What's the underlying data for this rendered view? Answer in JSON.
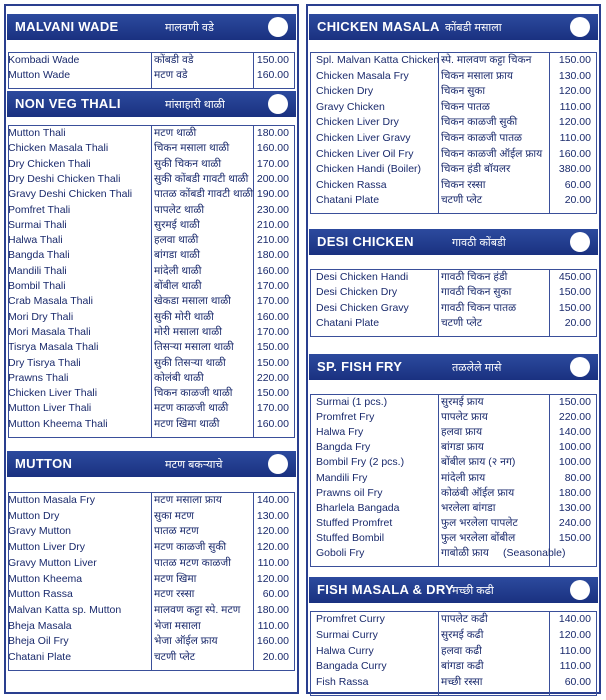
{
  "sections": [
    {
      "title": "MALVANI WADE",
      "title_mr": "मालवणी वडे",
      "items": [
        {
          "name": "Kombadi Wade",
          "name_mr": "कोंबडी वडे",
          "price": "150.00"
        },
        {
          "name": "Mutton Wade",
          "name_mr": "मटण वडे",
          "price": "160.00"
        }
      ]
    },
    {
      "title": "NON VEG THALI",
      "title_mr": "मांसाहारी थाळी",
      "items": [
        {
          "name": "Mutton Thali",
          "name_mr": "मटण थाळी",
          "price": "180.00"
        },
        {
          "name": "Chicken Masala Thali",
          "name_mr": "चिकन मसाला थाळी",
          "price": "160.00"
        },
        {
          "name": "Dry Chicken Thali",
          "name_mr": "सुकी चिकन थाळी",
          "price": "170.00"
        },
        {
          "name": "Dry Deshi Chicken Thali",
          "name_mr": "सुकी कोंबडी गावटी थाळी",
          "price": "200.00"
        },
        {
          "name": "Gravy Deshi Chicken Thali",
          "name_mr": "पातळ कोंबडी गावटी थाळी",
          "price": "190.00"
        },
        {
          "name": "Pomfret Thali",
          "name_mr": "पापलेट थाळी",
          "price": "230.00"
        },
        {
          "name": "Surmai Thali",
          "name_mr": "सुरमई थाळी",
          "price": "210.00"
        },
        {
          "name": "Halwa Thali",
          "name_mr": "हलवा थाळी",
          "price": "210.00"
        },
        {
          "name": "Bangda Thali",
          "name_mr": "बांगडा थाळी",
          "price": "180.00"
        },
        {
          "name": "Mandili Thali",
          "name_mr": "मांदेली थाळी",
          "price": "160.00"
        },
        {
          "name": "Bombil Thali",
          "name_mr": "बोंबील थाळी",
          "price": "170.00"
        },
        {
          "name": "Crab  Masala Thali",
          "name_mr": "खेकडा मसाला थाळी",
          "price": "170.00"
        },
        {
          "name": "Mori Dry Thali",
          "name_mr": "सुकी मोरी थाळी",
          "price": "160.00"
        },
        {
          "name": "Mori Masala Thali",
          "name_mr": "मोरी मसाला थाळी",
          "price": "170.00"
        },
        {
          "name": "Tisrya Masala Thali",
          "name_mr": "तिसऱ्या मसाला थाळी",
          "price": "150.00"
        },
        {
          "name": "Dry Tisrya Thali",
          "name_mr": "सुकी तिसऱ्या थाळी",
          "price": "150.00"
        },
        {
          "name": "Prawns Thali",
          "name_mr": "कोलंबी थाळी",
          "price": "220.00"
        },
        {
          "name": "Chicken Liver Thali",
          "name_mr": "चिकन काळजी थाळी",
          "price": "150.00"
        },
        {
          "name": "Mutton Liver Thali",
          "name_mr": "मटण काळजी थाळी",
          "price": "170.00"
        },
        {
          "name": "Mutton Kheema Thali",
          "name_mr": "मटण खिमा थाळी",
          "price": "160.00"
        }
      ]
    },
    {
      "title": "MUTTON",
      "title_mr": "मटण बकऱ्याचे",
      "items": [
        {
          "name": "Mutton  Masala Fry",
          "name_mr": "मटण मसाला फ्राय",
          "price": "140.00"
        },
        {
          "name": "Mutton Dry",
          "name_mr": "सुका मटण",
          "price": "130.00"
        },
        {
          "name": "Gravy Mutton",
          "name_mr": "पातळ मटण",
          "price": "120.00"
        },
        {
          "name": "Mutton Liver Dry",
          "name_mr": "मटण काळजी सुकी",
          "price": "120.00"
        },
        {
          "name": "Gravy Mutton Liver",
          "name_mr": "पातळ मटण काळजी",
          "price": "110.00"
        },
        {
          "name": "Mutton Kheema",
          "name_mr": "मटण खिमा",
          "price": "120.00"
        },
        {
          "name": "Mutton Rassa",
          "name_mr": "मटण रस्सा",
          "price": "60.00"
        },
        {
          "name": "Malvan Katta sp. Mutton",
          "name_mr": "मालवण कट्टा स्पे. मटण",
          "price": "180.00"
        },
        {
          "name": "Bheja Masala",
          "name_mr": "भेजा मसाला",
          "price": "110.00"
        },
        {
          "name": "Bheja Oil Fry",
          "name_mr": "भेजा ऑईल फ्राय",
          "price": "160.00"
        },
        {
          "name": "Chatani Plate",
          "name_mr": "चटणी प्लेट",
          "price": "20.00"
        }
      ]
    },
    {
      "title": "CHICKEN MASALA",
      "title_mr": "कोंबडी मसाला",
      "items": [
        {
          "name": "Spl. Malvan Katta Chicken",
          "name_mr": "स्पे. मालवण कट्टा चिकन",
          "price": "150.00"
        },
        {
          "name": "Chicken Masala Fry",
          "name_mr": "चिकन मसाला फ्राय",
          "price": "130.00"
        },
        {
          "name": "Chicken Dry",
          "name_mr": "चिकन सुका",
          "price": "120.00"
        },
        {
          "name": "Gravy Chicken",
          "name_mr": "चिकन पातळ",
          "price": "110.00"
        },
        {
          "name": "Chicken Liver Dry",
          "name_mr": "चिकन काळजी सुकी",
          "price": "120.00"
        },
        {
          "name": "Chicken Liver Gravy",
          "name_mr": "चिकन काळजी पातळ",
          "price": "110.00"
        },
        {
          "name": "Chicken Liver Oil Fry",
          "name_mr": "चिकन काळजी ऑईल फ्राय",
          "price": "160.00"
        },
        {
          "name": "Chicken Handi (Boiler)",
          "name_mr": "चिकन हंडी बॉयलर",
          "price": "380.00"
        },
        {
          "name": "Chicken Rassa",
          "name_mr": "चिकन रस्सा",
          "price": "60.00"
        },
        {
          "name": "Chatani Plate",
          "name_mr": "चटणी प्लेट",
          "price": "20.00"
        }
      ]
    },
    {
      "title": "DESI CHICKEN",
      "title_mr": "गावठी कोंबडी",
      "items": [
        {
          "name": "Desi Chicken Handi",
          "name_mr": "गावठी चिकन हंडी",
          "price": "450.00"
        },
        {
          "name": "Desi Chicken Dry",
          "name_mr": "गावठी चिकन सुका",
          "price": "150.00"
        },
        {
          "name": "Desi Chicken Gravy",
          "name_mr": "गावठी चिकन पातळ",
          "price": "150.00"
        },
        {
          "name": "Chatani Plate",
          "name_mr": "चटणी प्लेट",
          "price": "20.00"
        }
      ]
    },
    {
      "title": "SP. FISH FRY",
      "title_mr": "तळलेले मासे",
      "items": [
        {
          "name": "Surmai (1 pcs.)",
          "name_mr": "सुरमई फ्राय",
          "price": "150.00"
        },
        {
          "name": "Promfret Fry",
          "name_mr": "पापलेट फ्राय",
          "price": "220.00"
        },
        {
          "name": "Halwa Fry",
          "name_mr": "हलवा फ्राय",
          "price": "140.00"
        },
        {
          "name": "Bangda Fry",
          "name_mr": "बांगडा फ्राय",
          "price": "100.00"
        },
        {
          "name": "Bombil Fry (2 pcs.)",
          "name_mr": "बोंबील फ्राय (२ नग)",
          "price": "100.00"
        },
        {
          "name": "Mandili Fry",
          "name_mr": "मांदेली फ्राय",
          "price": "80.00"
        },
        {
          "name": "Prawns oil Fry",
          "name_mr": "कोळंबी ऑईल फ्राय",
          "price": "180.00"
        },
        {
          "name": "Bharlela Bangada",
          "name_mr": "भरलेला बांगडा",
          "price": "130.00"
        },
        {
          "name": "Stuffed Promfret",
          "name_mr": "फुल भरलेला पापलेट",
          "price": "240.00"
        },
        {
          "name": "Stuffed Bombil",
          "name_mr": "फुल भरलेला बोंबील",
          "price": "150.00"
        },
        {
          "name": "Goboli Fry",
          "name_mr": "गाबोळी फ्राय",
          "note": "(Seasonable)"
        }
      ]
    },
    {
      "title": "FISH MASALA & DRY",
      "title_mr": "मच्छी कढी",
      "items": [
        {
          "name": "Promfret Curry",
          "name_mr": "पापलेट कढी",
          "price": "140.00"
        },
        {
          "name": "Surmai Curry",
          "name_mr": "सुरमई कढी",
          "price": "120.00"
        },
        {
          "name": "Halwa Curry",
          "name_mr": "हलवा कढी",
          "price": "110.00"
        },
        {
          "name": "Bangada Curry",
          "name_mr": "बांगडा कढी",
          "price": "110.00"
        },
        {
          "name": "Fish Rassa",
          "name_mr": "मच्छी रस्सा",
          "price": "60.00"
        }
      ]
    }
  ]
}
